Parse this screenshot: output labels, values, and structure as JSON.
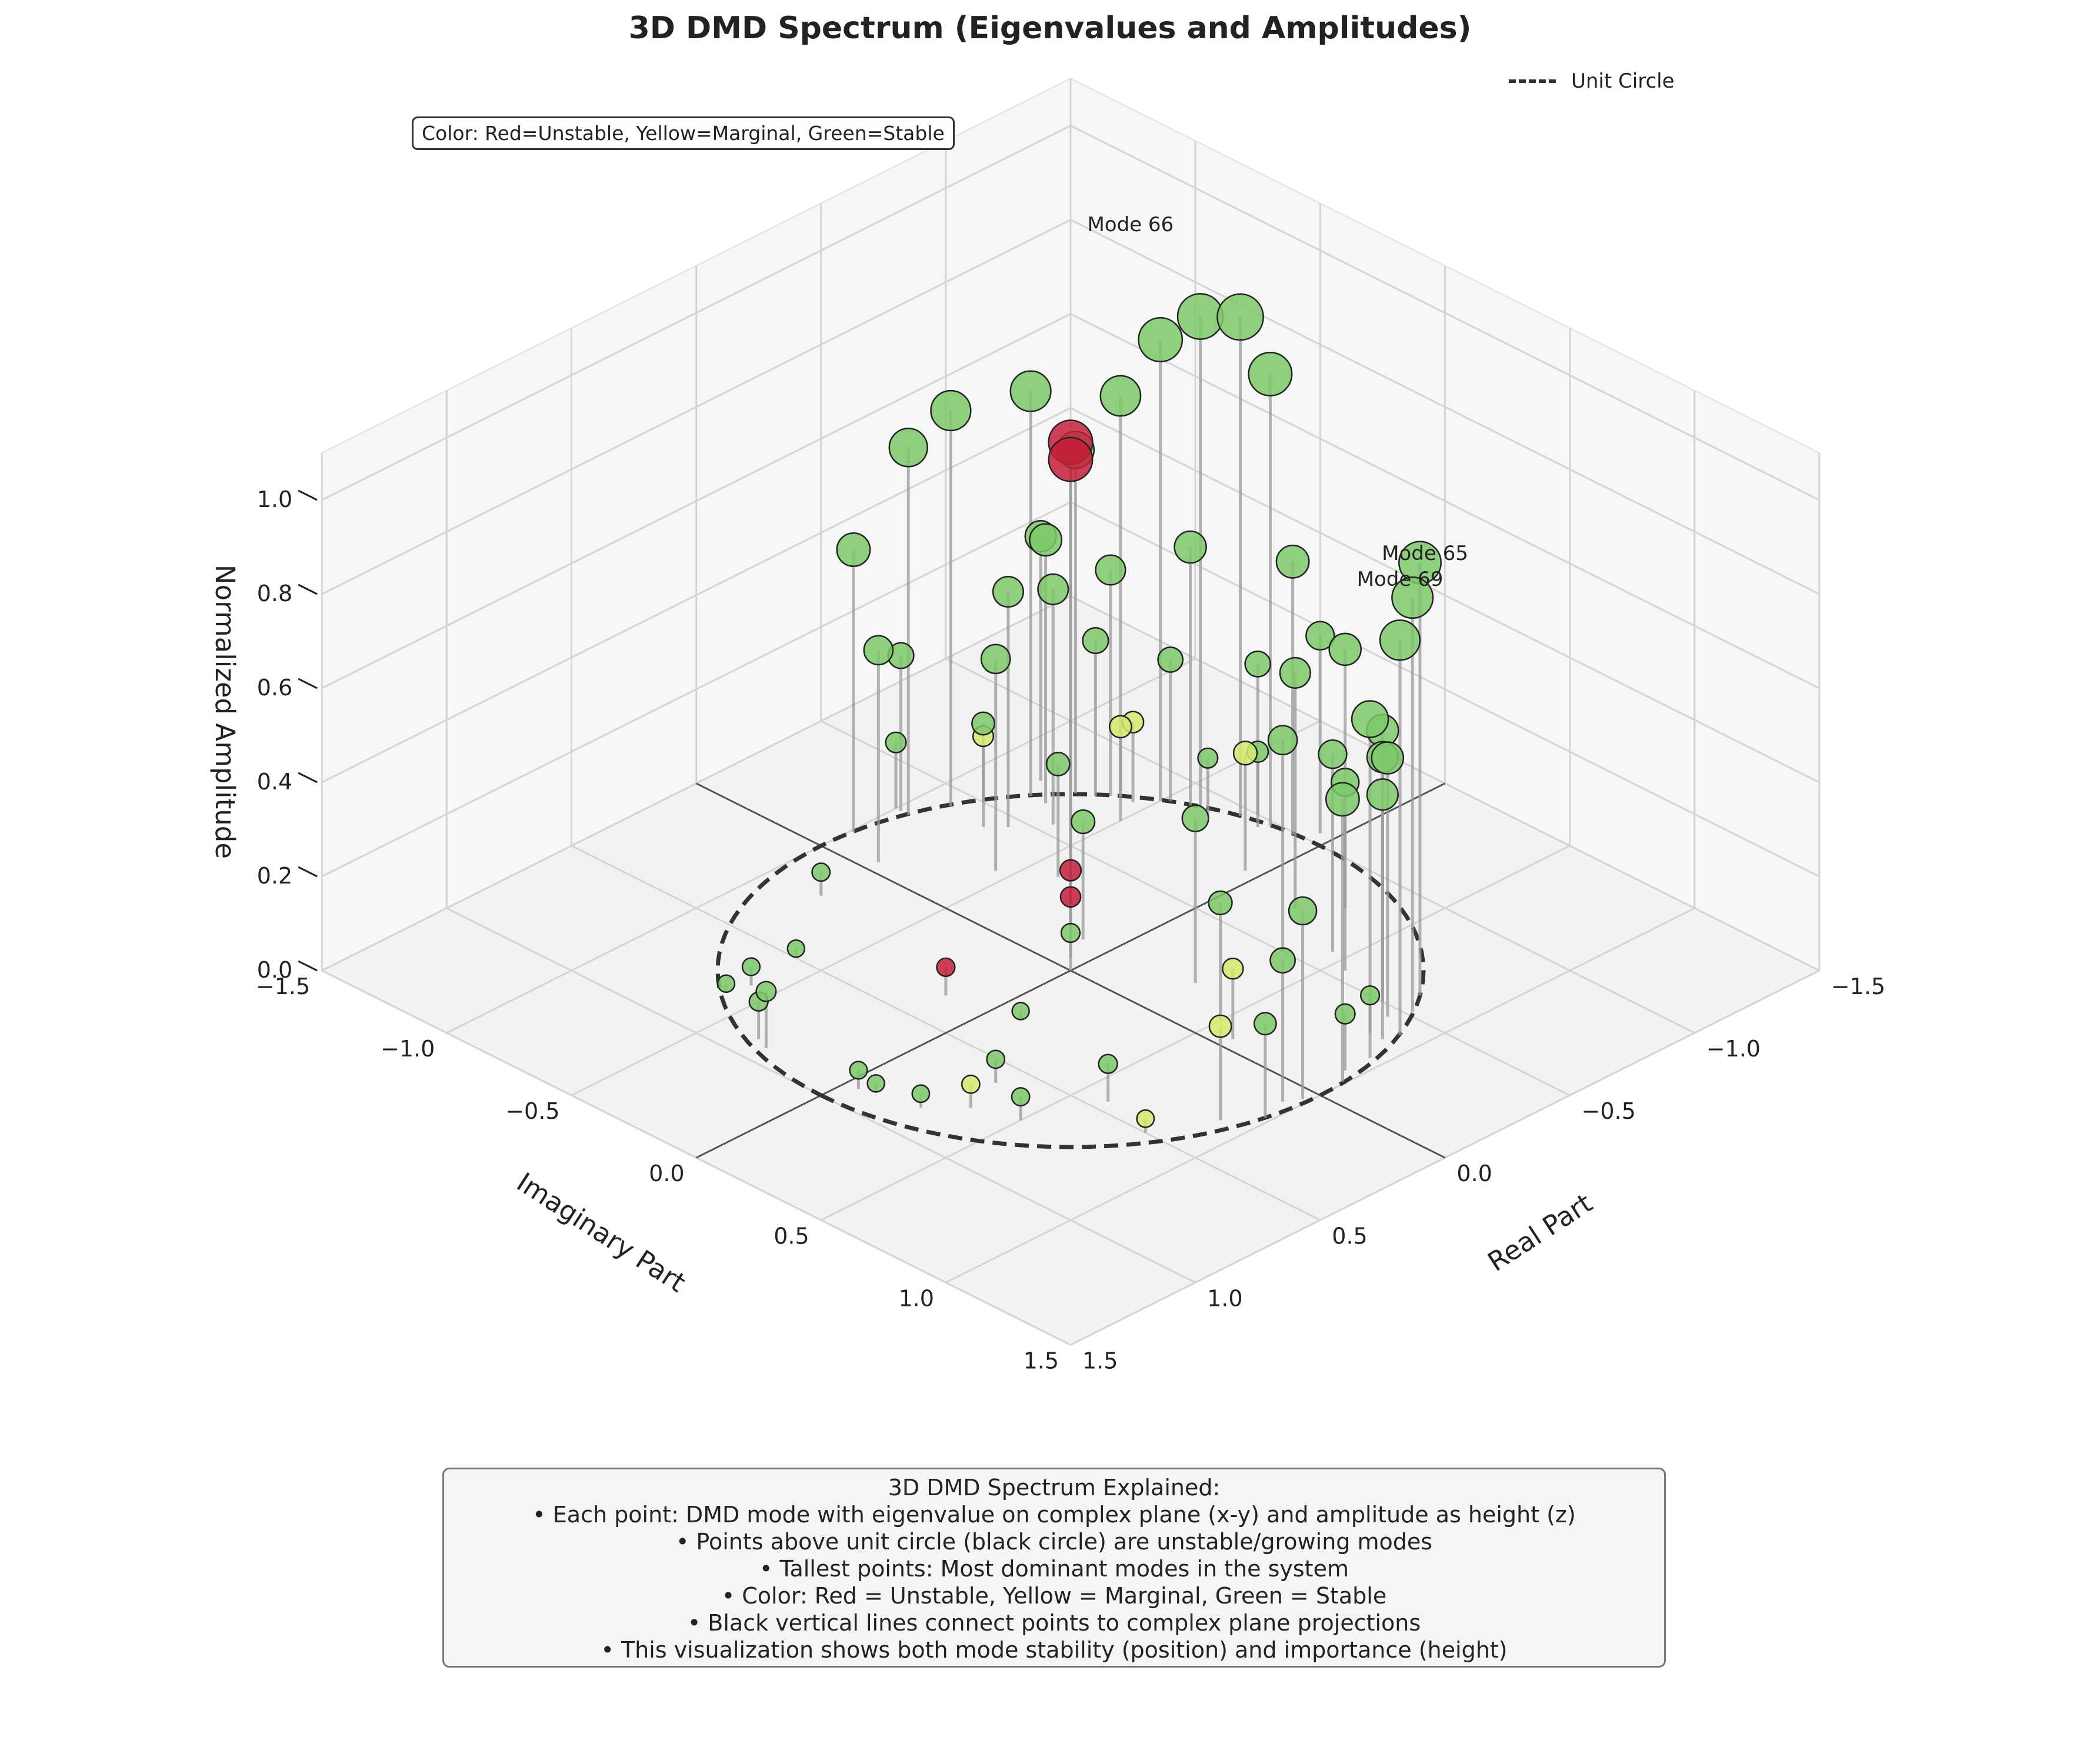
{
  "title": "3D DMD Spectrum (Eigenvalues and Amplitudes)",
  "color_note": "Color: Red=Unstable, Yellow=Marginal, Green=Stable",
  "legend": {
    "label": "Unit Circle"
  },
  "explanation": {
    "heading": "3D DMD Spectrum Explained:",
    "lines": [
      "• Each point: DMD mode with eigenvalue on complex plane (x-y) and amplitude as height (z)",
      "• Points above unit circle (black circle) are unstable/growing modes",
      "• Tallest points: Most dominant modes in the system",
      "• Color: Red = Unstable, Yellow = Marginal, Green = Stable",
      "• Black vertical lines connect points to complex plane projections",
      "• This visualization shows both mode stability (position) and importance (height)"
    ]
  },
  "colors": {
    "unstable": "#c41e3a",
    "marginal": "#d4ea6b",
    "stable": "#7cc96a",
    "stems": "#999999",
    "circle": "#333333"
  },
  "chart_data": {
    "type": "scatter",
    "projection": "3d",
    "xlabel": "Real Part",
    "ylabel": "Imaginary Part",
    "zlabel": "Normalized Amplitude",
    "xlim": [
      -1.5,
      1.5
    ],
    "ylim": [
      -1.5,
      1.5
    ],
    "zlim": [
      0,
      1.1
    ],
    "xticks": [
      "−1.5",
      "−1.0",
      "−0.5",
      "0.0",
      "0.5",
      "1.0",
      "1.5"
    ],
    "yticks": [
      "−1.5",
      "−1.0",
      "−0.5",
      "0.0",
      "0.5",
      "1.0",
      "1.5"
    ],
    "zticks": [
      "0.0",
      "0.2",
      "0.4",
      "0.6",
      "0.8",
      "1.0"
    ],
    "grid": true,
    "legend_position": "top-right",
    "unit_circle": true,
    "annotations": [
      {
        "text": "Mode 66",
        "x": -0.82,
        "y": -0.58,
        "z": 1.2
      },
      {
        "text": "Mode 65",
        "x": -0.62,
        "y": 0.8,
        "z": 0.92
      },
      {
        "text": "Mode 69",
        "x": -0.58,
        "y": 0.74,
        "z": 0.86
      }
    ],
    "points": [
      {
        "x": -0.96,
        "y": -0.28,
        "z": 1.06,
        "stability": "stable"
      },
      {
        "x": -0.92,
        "y": -0.4,
        "z": 1.04,
        "stability": "stable"
      },
      {
        "x": -0.98,
        "y": -0.18,
        "z": 0.96,
        "stability": "stable"
      },
      {
        "x": -0.86,
        "y": -0.5,
        "z": 0.98,
        "stability": "stable"
      },
      {
        "x": -0.8,
        "y": -0.6,
        "z": 0.85,
        "stability": "stable"
      },
      {
        "x": -0.72,
        "y": -0.7,
        "z": 0.73,
        "stability": "stable"
      },
      {
        "x": -0.62,
        "y": -0.78,
        "z": 0.86,
        "stability": "stable"
      },
      {
        "x": -0.99,
        "y": -0.1,
        "z": 0.58,
        "stability": "stable"
      },
      {
        "x": -0.9,
        "y": -0.42,
        "z": 0.55,
        "stability": "stable"
      },
      {
        "x": -0.78,
        "y": -0.62,
        "z": 0.48,
        "stability": "stable"
      },
      {
        "x": -0.62,
        "y": -0.72,
        "z": 0.56,
        "stability": "stable"
      },
      {
        "x": -0.42,
        "y": -0.9,
        "z": 0.84,
        "stability": "stable"
      },
      {
        "x": -0.3,
        "y": -0.95,
        "z": 0.78,
        "stability": "stable"
      },
      {
        "x": -0.12,
        "y": -0.99,
        "z": 0.6,
        "stability": "stable"
      },
      {
        "x": -0.05,
        "y": -0.82,
        "z": 0.45,
        "stability": "stable"
      },
      {
        "x": -0.7,
        "y": -0.82,
        "z": 0.52,
        "stability": "stable"
      },
      {
        "x": -0.55,
        "y": -0.62,
        "z": 0.5,
        "stability": "stable"
      },
      {
        "x": -0.45,
        "y": -0.7,
        "z": 0.5,
        "stability": "stable"
      },
      {
        "x": -0.25,
        "y": -0.55,
        "z": 0.45,
        "stability": "stable"
      },
      {
        "x": -0.25,
        "y": -0.25,
        "z": 0.99,
        "stability": "unstable"
      },
      {
        "x": -0.2,
        "y": -0.2,
        "z": 0.98,
        "stability": "unstable"
      },
      {
        "x": -1.05,
        "y": -0.05,
        "z": 0.42,
        "stability": "stable"
      },
      {
        "x": -1.0,
        "y": -0.25,
        "z": 0.32,
        "stability": "stable"
      },
      {
        "x": -0.88,
        "y": -0.48,
        "z": 0.3,
        "stability": "stable"
      },
      {
        "x": -0.75,
        "y": -0.65,
        "z": 0.33,
        "stability": "stable"
      },
      {
        "x": -0.3,
        "y": -0.98,
        "z": 0.33,
        "stability": "stable"
      },
      {
        "x": -0.35,
        "y": -0.4,
        "z": 0.24,
        "stability": "stable"
      },
      {
        "x": -0.15,
        "y": -0.1,
        "z": 0.25,
        "stability": "stable"
      },
      {
        "x": -0.1,
        "y": -0.1,
        "z": 0.16,
        "stability": "unstable"
      },
      {
        "x": -0.05,
        "y": -0.05,
        "z": 0.13,
        "stability": "unstable"
      },
      {
        "x": 0.0,
        "y": 0.0,
        "z": 0.08,
        "stability": "stable"
      },
      {
        "x": -0.9,
        "y": -0.35,
        "z": 0.12,
        "stability": "stable"
      },
      {
        "x": -0.95,
        "y": -0.2,
        "z": 0.16,
        "stability": "stable"
      },
      {
        "x": -0.8,
        "y": -0.55,
        "z": 0.17,
        "stability": "marginal"
      },
      {
        "x": -0.7,
        "y": -0.5,
        "z": 0.2,
        "stability": "marginal"
      },
      {
        "x": -0.5,
        "y": -0.85,
        "z": 0.14,
        "stability": "marginal"
      },
      {
        "x": -0.4,
        "y": -0.75,
        "z": 0.22,
        "stability": "stable"
      },
      {
        "x": 0.35,
        "y": -0.15,
        "z": 0.06,
        "stability": "unstable"
      },
      {
        "x": -0.3,
        "y": -1.0,
        "z": 0.14,
        "stability": "stable"
      },
      {
        "x": -0.75,
        "y": -0.05,
        "z": 0.25,
        "stability": "marginal"
      },
      {
        "x": 0.2,
        "y": -0.8,
        "z": 0.05,
        "stability": "stable"
      },
      {
        "x": 0.5,
        "y": -0.6,
        "z": 0.02,
        "stability": "stable"
      },
      {
        "x": 0.7,
        "y": -0.58,
        "z": 0.04,
        "stability": "stable"
      },
      {
        "x": 0.78,
        "y": -0.6,
        "z": 0.02,
        "stability": "stable"
      },
      {
        "x": 0.9,
        "y": -0.35,
        "z": 0.08,
        "stability": "stable"
      },
      {
        "x": 0.92,
        "y": -0.3,
        "z": 0.12,
        "stability": "stable"
      },
      {
        "x": 0.3,
        "y": 0.1,
        "z": 0.02,
        "stability": "stable"
      },
      {
        "x": 0.6,
        "y": 0.3,
        "z": 0.05,
        "stability": "stable"
      },
      {
        "x": 0.75,
        "y": 0.35,
        "z": 0.05,
        "stability": "marginal"
      },
      {
        "x": 0.85,
        "y": 0.25,
        "z": 0.03,
        "stability": "stable"
      },
      {
        "x": 0.9,
        "y": 0.05,
        "z": 0.04,
        "stability": "stable"
      },
      {
        "x": 0.88,
        "y": 0.1,
        "z": 0.02,
        "stability": "stable"
      },
      {
        "x": 0.7,
        "y": 0.5,
        "z": 0.05,
        "stability": "stable"
      },
      {
        "x": 0.45,
        "y": 0.6,
        "z": 0.08,
        "stability": "stable"
      },
      {
        "x": 0.5,
        "y": 0.8,
        "z": 0.03,
        "stability": "marginal"
      },
      {
        "x": -0.2,
        "y": 0.3,
        "z": 0.35,
        "stability": "stable"
      },
      {
        "x": -0.1,
        "y": 0.5,
        "z": 0.25,
        "stability": "stable"
      },
      {
        "x": -0.35,
        "y": 0.85,
        "z": 0.08,
        "stability": "stable"
      },
      {
        "x": -0.15,
        "y": 0.95,
        "z": 0.12,
        "stability": "stable"
      },
      {
        "x": -0.55,
        "y": 0.55,
        "z": 0.4,
        "stability": "stable"
      },
      {
        "x": -0.6,
        "y": 0.45,
        "z": 0.42,
        "stability": "stable"
      },
      {
        "x": -0.55,
        "y": 0.7,
        "z": 0.55,
        "stability": "stable"
      },
      {
        "x": -0.5,
        "y": 0.75,
        "z": 0.52,
        "stability": "stable"
      },
      {
        "x": -0.45,
        "y": 0.82,
        "z": 0.55,
        "stability": "stable"
      },
      {
        "x": -0.35,
        "y": 0.9,
        "z": 0.52,
        "stability": "stable"
      },
      {
        "x": -0.6,
        "y": 0.8,
        "z": 0.92,
        "stability": "stable"
      },
      {
        "x": -0.52,
        "y": 0.85,
        "z": 0.88,
        "stability": "stable"
      },
      {
        "x": -0.4,
        "y": 0.92,
        "z": 0.84,
        "stability": "stable"
      },
      {
        "x": -0.25,
        "y": 0.95,
        "z": 0.72,
        "stability": "stable"
      },
      {
        "x": -0.1,
        "y": 0.99,
        "z": 0.6,
        "stability": "stable"
      },
      {
        "x": -0.8,
        "y": 0.3,
        "z": 0.55,
        "stability": "stable"
      },
      {
        "x": -0.7,
        "y": 0.2,
        "z": 0.5,
        "stability": "stable"
      },
      {
        "x": -0.5,
        "y": 0.35,
        "z": 0.45,
        "stability": "stable"
      },
      {
        "x": 0.05,
        "y": 0.98,
        "z": 0.4,
        "stability": "stable"
      },
      {
        "x": 0.1,
        "y": 0.95,
        "z": 0.3,
        "stability": "stable"
      },
      {
        "x": 0.2,
        "y": 0.98,
        "z": 0.2,
        "stability": "stable"
      },
      {
        "x": 0.3,
        "y": 0.9,
        "z": 0.2,
        "stability": "marginal"
      },
      {
        "x": -0.05,
        "y": 0.6,
        "z": 0.15,
        "stability": "marginal"
      }
    ]
  }
}
